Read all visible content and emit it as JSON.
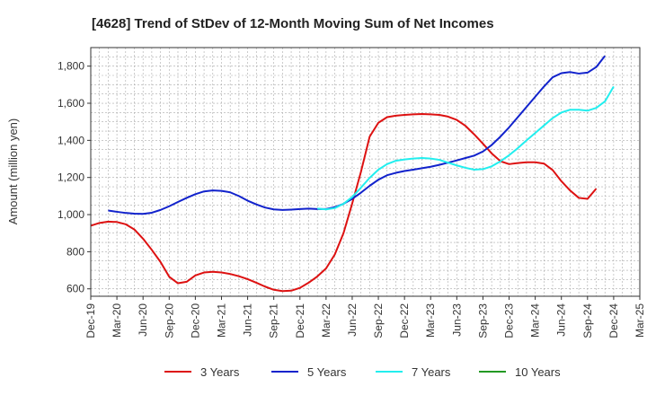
{
  "chart_data": {
    "type": "line",
    "title": "[4628]  Trend of StDev of 12-Month Moving Sum of Net Incomes",
    "ylabel": "Amount (million yen)",
    "xlabel": "",
    "ylim": [
      560,
      1900
    ],
    "yticks": [
      600,
      800,
      1000,
      1200,
      1400,
      1600,
      1800
    ],
    "ytick_labels": [
      "600",
      "800",
      "1,000",
      "1,200",
      "1,400",
      "1,600",
      "1,800"
    ],
    "x_start": "2019-12",
    "x_end": "2025-03",
    "xtick_labels": [
      "Dec-19",
      "Mar-20",
      "Jun-20",
      "Sep-20",
      "Dec-20",
      "Mar-21",
      "Jun-21",
      "Sep-21",
      "Dec-21",
      "Mar-22",
      "Jun-22",
      "Sep-22",
      "Dec-22",
      "Mar-23",
      "Jun-23",
      "Sep-23",
      "Dec-23",
      "Mar-24",
      "Jun-24",
      "Sep-24",
      "Dec-24",
      "Mar-25"
    ],
    "grid": true,
    "legend_position": "bottom",
    "series": [
      {
        "name": "3 Years",
        "color": "#dd1111",
        "start": "2019-12",
        "values": [
          940,
          955,
          962,
          960,
          948,
          920,
          870,
          810,
          745,
          665,
          630,
          638,
          672,
          688,
          692,
          688,
          680,
          668,
          652,
          633,
          612,
          595,
          588,
          590,
          605,
          633,
          667,
          710,
          785,
          900,
          1060,
          1230,
          1420,
          1495,
          1525,
          1533,
          1537,
          1540,
          1542,
          1540,
          1537,
          1528,
          1510,
          1478,
          1432,
          1382,
          1330,
          1288,
          1272,
          1278,
          1282,
          1282,
          1275,
          1240,
          1180,
          1130,
          1090,
          1085,
          1140
        ]
      },
      {
        "name": "5 Years",
        "color": "#1122cc",
        "start": "2020-02",
        "values": [
          1022,
          1015,
          1009,
          1005,
          1004,
          1010,
          1025,
          1045,
          1068,
          1090,
          1110,
          1125,
          1130,
          1128,
          1120,
          1100,
          1075,
          1055,
          1038,
          1028,
          1025,
          1027,
          1030,
          1032,
          1030,
          1030,
          1040,
          1058,
          1085,
          1118,
          1155,
          1188,
          1212,
          1225,
          1235,
          1242,
          1250,
          1258,
          1268,
          1280,
          1292,
          1305,
          1318,
          1340,
          1375,
          1420,
          1470,
          1525,
          1580,
          1635,
          1690,
          1740,
          1762,
          1768,
          1760,
          1765,
          1795,
          1855
        ]
      },
      {
        "name": "7 Years",
        "color": "#22eeee",
        "start": "2022-02",
        "values": [
          1032,
          1028,
          1035,
          1058,
          1095,
          1145,
          1198,
          1242,
          1272,
          1290,
          1297,
          1302,
          1305,
          1302,
          1295,
          1280,
          1265,
          1252,
          1242,
          1245,
          1260,
          1287,
          1320,
          1358,
          1400,
          1440,
          1480,
          1520,
          1550,
          1565,
          1565,
          1560,
          1575,
          1610,
          1690
        ]
      },
      {
        "name": "10 Years",
        "color": "#229922",
        "start": "",
        "values": []
      }
    ]
  }
}
